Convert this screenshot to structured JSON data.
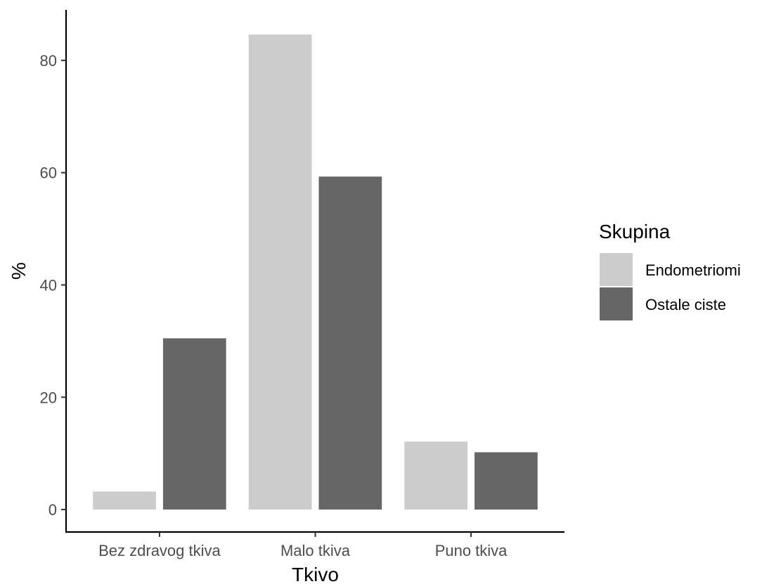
{
  "chart_data": {
    "type": "bar",
    "xlabel": "Tkivo",
    "ylabel": "%",
    "categories": [
      "Bez zdravog tkiva",
      "Malo tkiva",
      "Puno tkiva"
    ],
    "series": [
      {
        "name": "Endometriomi",
        "values": [
          3.2,
          84.6,
          12.1
        ],
        "color": "#cccccc"
      },
      {
        "name": "Ostale ciste",
        "values": [
          30.5,
          59.3,
          10.2
        ],
        "color": "#666666"
      }
    ],
    "ylim": [
      -4,
      89
    ],
    "yticks": [
      0,
      20,
      40,
      60,
      80
    ],
    "grid": false,
    "legend": {
      "title": "Skupina",
      "position": "right"
    }
  }
}
